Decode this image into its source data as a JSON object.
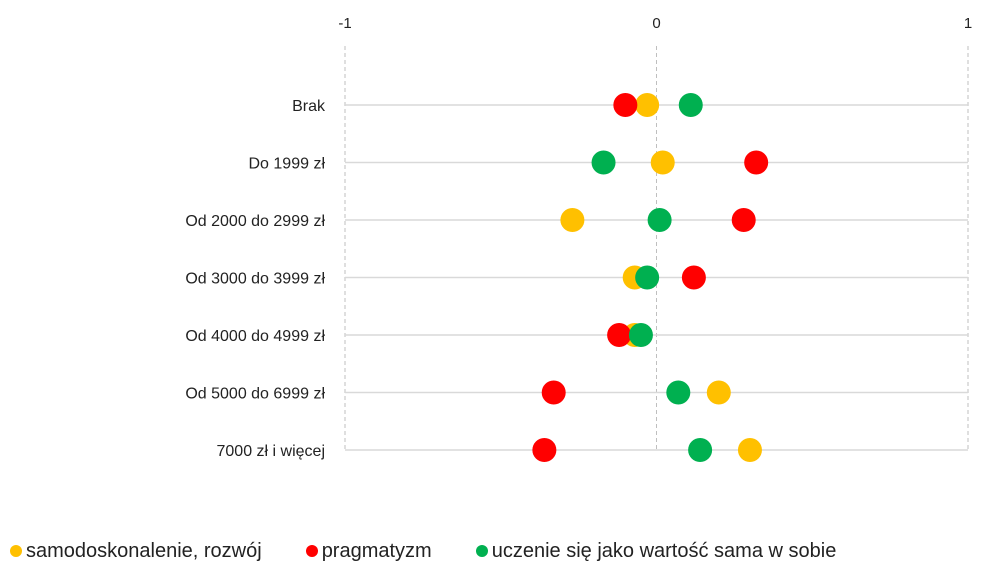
{
  "chart_data": {
    "type": "scatter",
    "xlim": [
      -1,
      1
    ],
    "xticks": [
      -1,
      0,
      1
    ],
    "tick_labels": [
      "-1",
      "0",
      "1"
    ],
    "categories": [
      "Brak",
      "Do 1999 zł",
      "Od 2000 do 2999 zł",
      "Od 3000 do 3999 zł",
      "Od 4000 do 4999 zł",
      "Od 5000 do 6999 zł",
      "7000 zł i więcej"
    ],
    "series": [
      {
        "name": "samodoskonalenie, rozwój",
        "color": "#FFC000",
        "values": [
          -0.03,
          0.02,
          -0.27,
          -0.07,
          -0.07,
          0.2,
          0.3
        ]
      },
      {
        "name": "pragmatyzm",
        "color": "#FF0000",
        "values": [
          -0.1,
          0.32,
          0.28,
          0.12,
          -0.12,
          -0.33,
          -0.36
        ]
      },
      {
        "name": "uczenie się jako wartość sama w sobie",
        "color": "#00B050",
        "values": [
          0.11,
          -0.17,
          0.01,
          -0.03,
          -0.05,
          0.07,
          0.14
        ]
      }
    ],
    "grid": true,
    "legend_position": "bottom"
  }
}
